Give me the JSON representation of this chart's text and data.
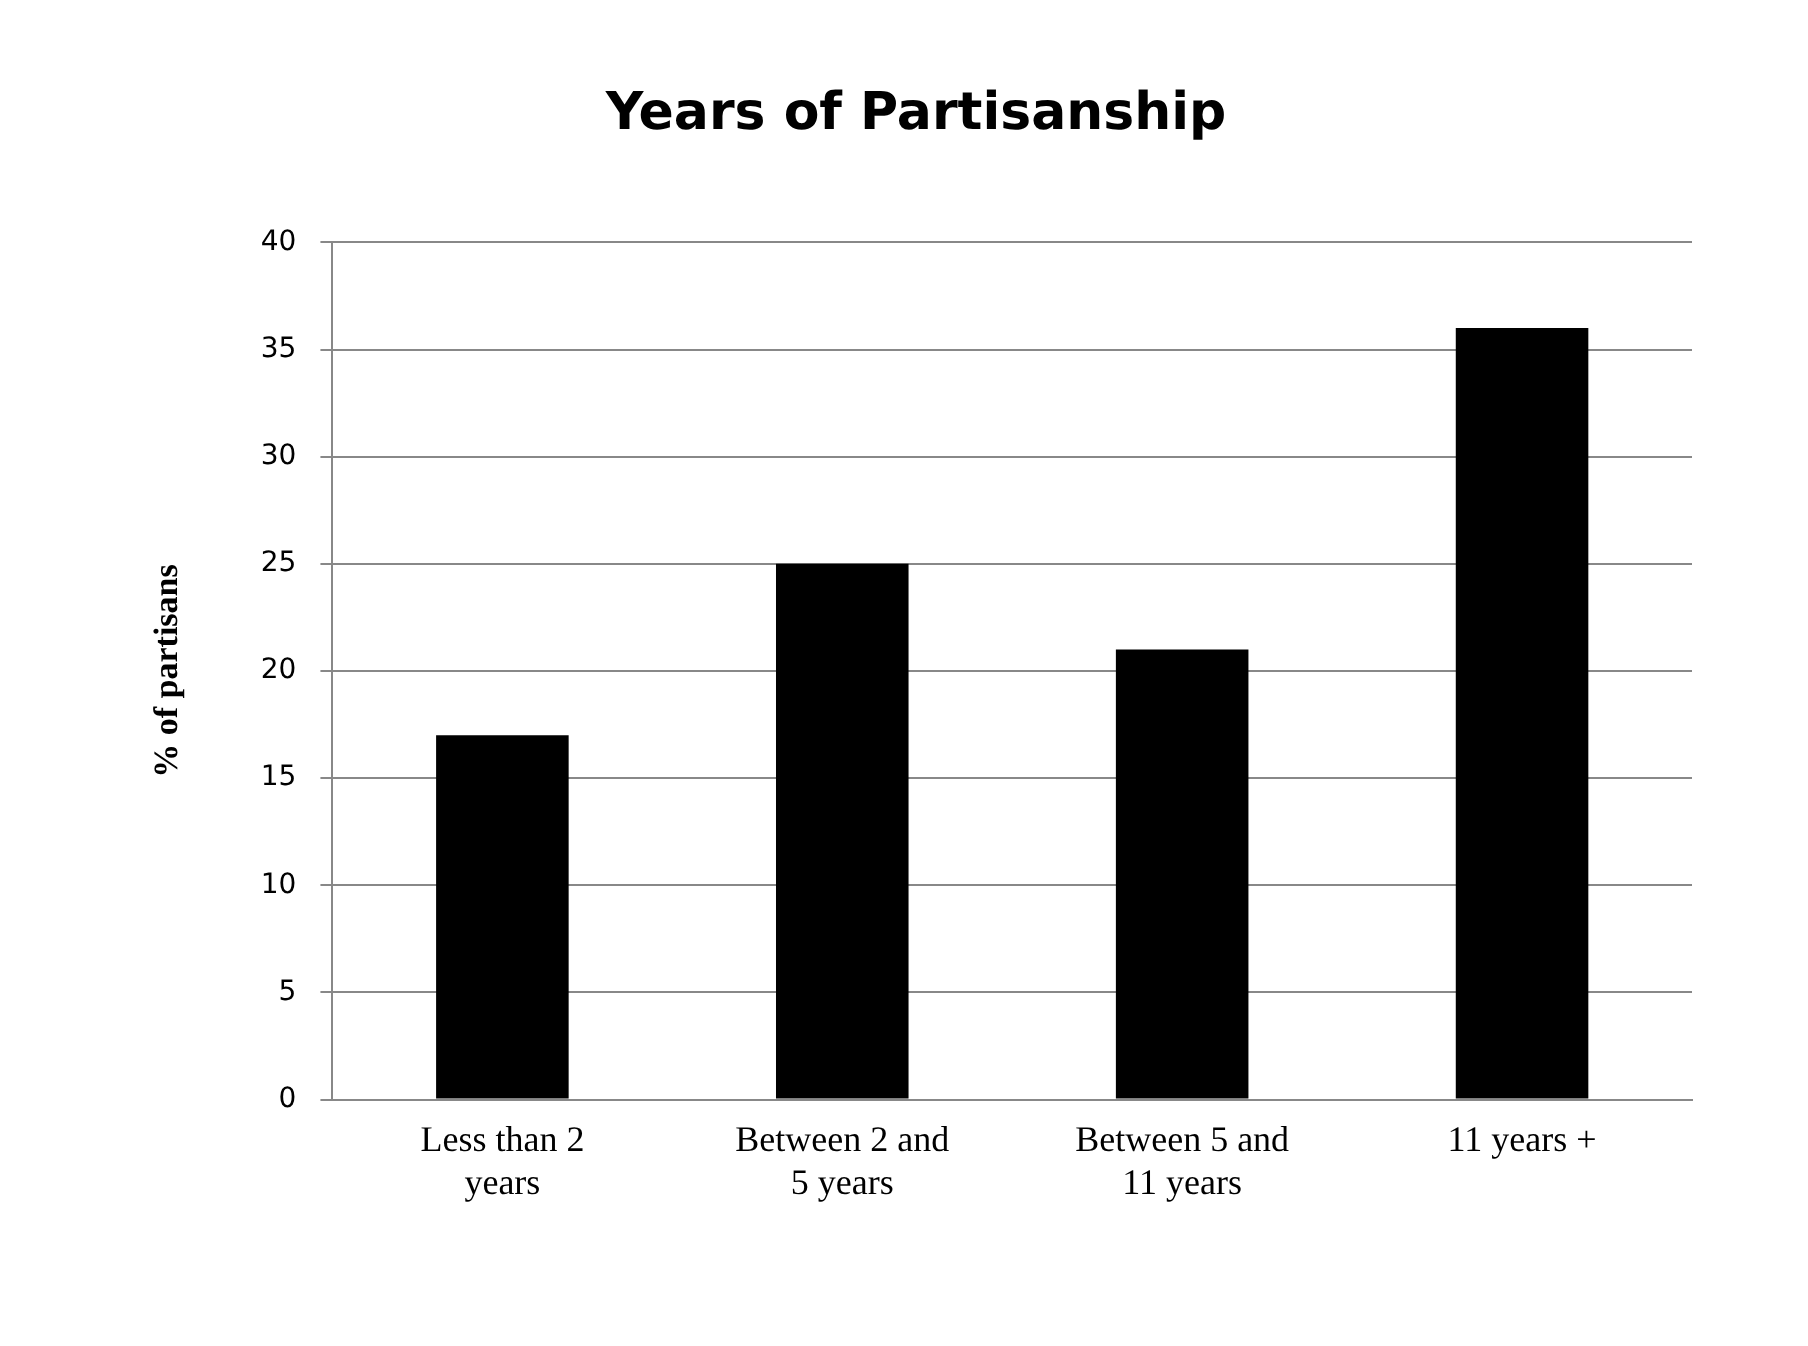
{
  "chart_data": {
    "type": "bar",
    "title": "Years of Partisanship",
    "ylabel": "% of partisans",
    "categories": [
      "Less than 2 years",
      "Between 2 and 5 years",
      "Between 5 and 11 years",
      "11 years +"
    ],
    "values": [
      17,
      25,
      21,
      36
    ],
    "color": "#000000",
    "ylim": [
      0,
      40
    ],
    "yticks": [
      0,
      5,
      10,
      15,
      20,
      25,
      30,
      35,
      40
    ],
    "grid": "y",
    "legend": false
  }
}
